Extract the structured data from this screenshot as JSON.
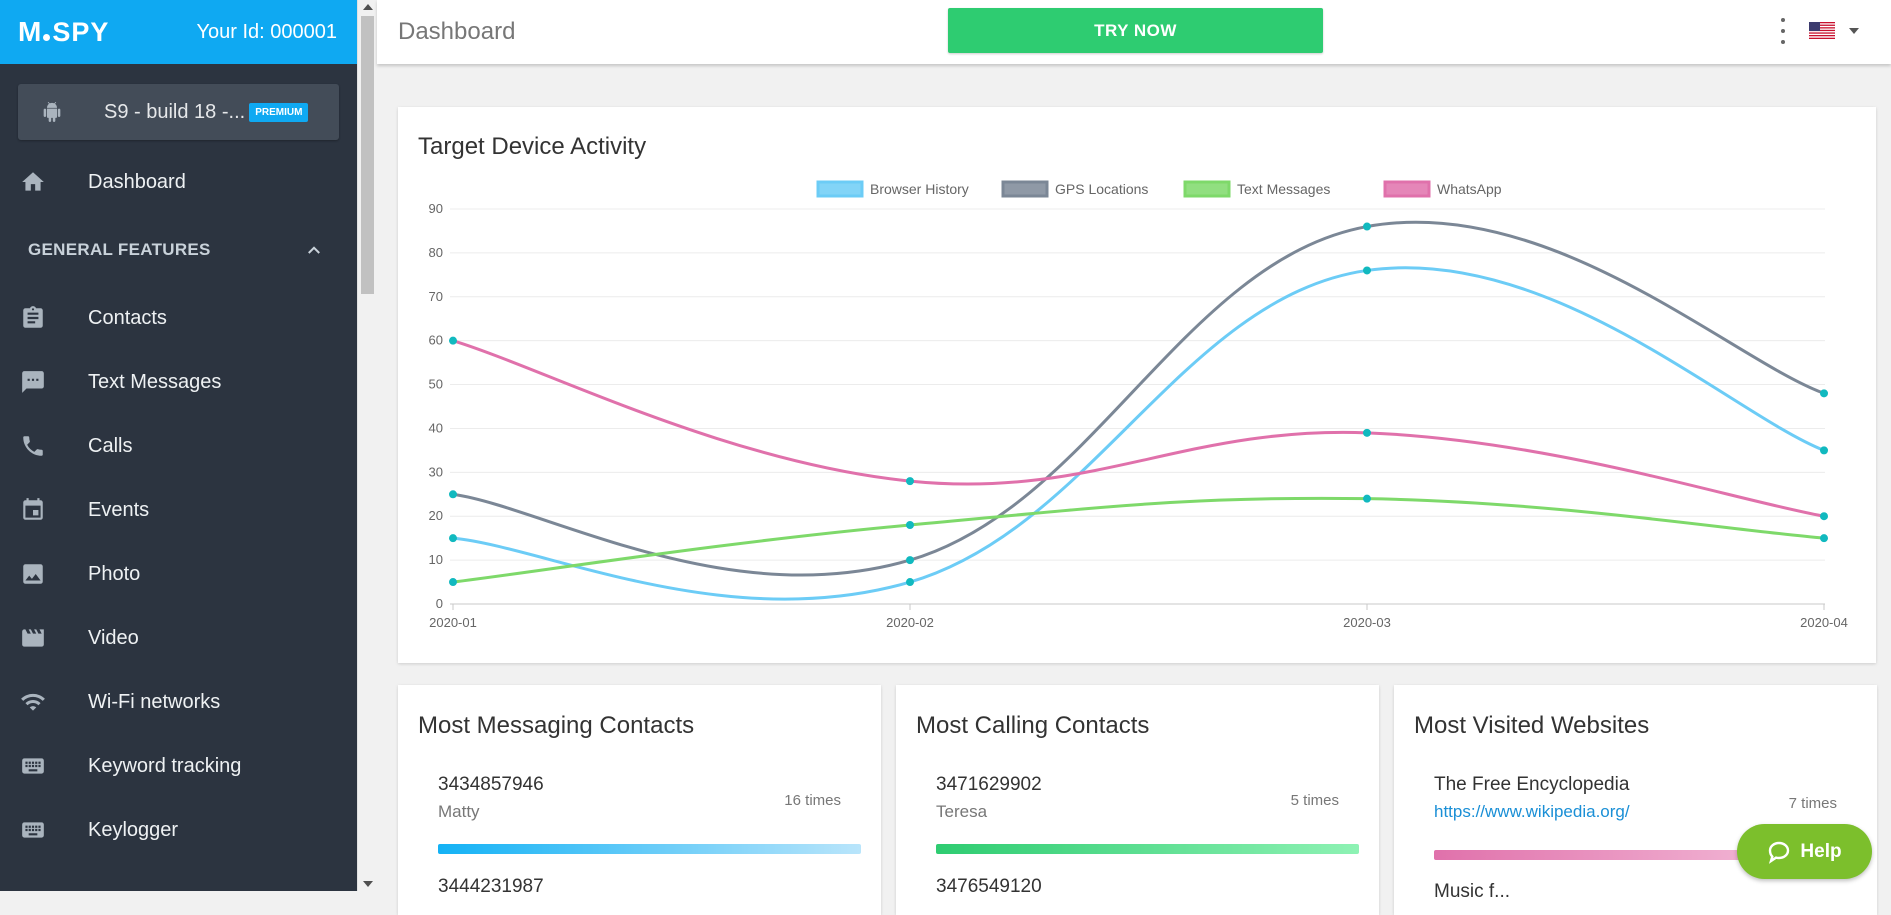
{
  "app": {
    "logo_text": "SPY",
    "user_id": "Your Id: 000001"
  },
  "device": {
    "name": "S9 - build 18 -...",
    "badge": "PREMIUM"
  },
  "sidebar": {
    "dashboard": "Dashboard",
    "section": "GENERAL FEATURES",
    "items": [
      {
        "label": "Contacts",
        "icon": "contacts-icon"
      },
      {
        "label": "Text Messages",
        "icon": "messages-icon"
      },
      {
        "label": "Calls",
        "icon": "phone-icon"
      },
      {
        "label": "Events",
        "icon": "calendar-icon"
      },
      {
        "label": "Photo",
        "icon": "photo-icon"
      },
      {
        "label": "Video",
        "icon": "video-icon"
      },
      {
        "label": "Wi-Fi networks",
        "icon": "wifi-icon"
      },
      {
        "label": "Keyword tracking",
        "icon": "keyboard-icon"
      },
      {
        "label": "Keylogger",
        "icon": "keyboard-icon"
      }
    ]
  },
  "topbar": {
    "title": "Dashboard",
    "try_now": "TRY NOW"
  },
  "colors": {
    "brand": "#0fa9f2",
    "sidebar_bg": "#2c3440",
    "try_now": "#2ecc71",
    "help": "#7cbf2c"
  },
  "chart_data": {
    "type": "line",
    "title": "Target Device Activity",
    "categories": [
      "2020-01",
      "2020-02",
      "2020-03",
      "2020-04"
    ],
    "ylim": [
      0,
      90
    ],
    "yticks": [
      0,
      10,
      20,
      30,
      40,
      50,
      60,
      70,
      80,
      90
    ],
    "legend_position": "top-center",
    "series": [
      {
        "name": "Browser History",
        "color": "#6cccf6",
        "values": [
          15,
          5,
          76,
          35
        ]
      },
      {
        "name": "GPS Locations",
        "color": "#7b8796",
        "values": [
          25,
          10,
          86,
          48
        ]
      },
      {
        "name": "Text Messages",
        "color": "#7ed96a",
        "values": [
          5,
          18,
          24,
          15
        ]
      },
      {
        "name": "WhatsApp",
        "color": "#e071ab",
        "values": [
          60,
          28,
          39,
          20
        ]
      }
    ],
    "point_color": "#11b9bf"
  },
  "cards": {
    "messaging": {
      "title": "Most Messaging Contacts",
      "entry_number": "3434857946",
      "entry_name": "Matty",
      "count": "16 times",
      "next_number": "3444231987"
    },
    "calling": {
      "title": "Most Calling Contacts",
      "entry_number": "3471629902",
      "entry_name": "Teresa",
      "count": "5 times",
      "next_number": "3476549120"
    },
    "websites": {
      "title": "Most Visited Websites",
      "entry_title": "The Free Encyclopedia",
      "entry_url": "https://www.wikipedia.org/",
      "count": "7 times",
      "next_title": "Music f..."
    }
  },
  "help": {
    "label": "Help"
  }
}
